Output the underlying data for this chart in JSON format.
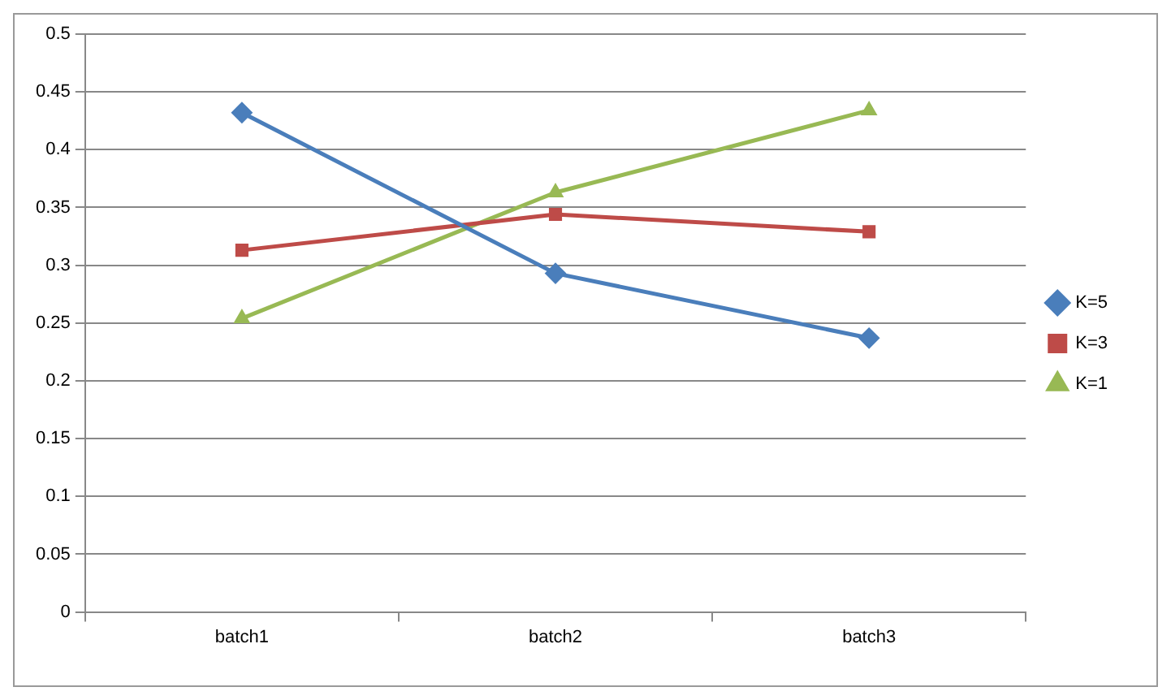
{
  "chart_data": {
    "type": "line",
    "categories": [
      "batch1",
      "batch2",
      "batch3"
    ],
    "series": [
      {
        "name": "K=5",
        "color": "#4a7ebb",
        "marker": "diamond",
        "values": [
          0.432,
          0.293,
          0.237
        ]
      },
      {
        "name": "K=3",
        "color": "#be4b48",
        "marker": "square",
        "values": [
          0.313,
          0.344,
          0.329
        ]
      },
      {
        "name": "K=1",
        "color": "#98b954",
        "marker": "triangle",
        "values": [
          0.254,
          0.363,
          0.434
        ]
      }
    ],
    "ylim": [
      0,
      0.5
    ],
    "yticks": [
      0,
      0.05,
      0.1,
      0.15,
      0.2,
      0.25,
      0.3,
      0.35,
      0.4,
      0.45,
      0.5
    ],
    "grid": "y",
    "legend": "right",
    "line_style": "solid"
  }
}
